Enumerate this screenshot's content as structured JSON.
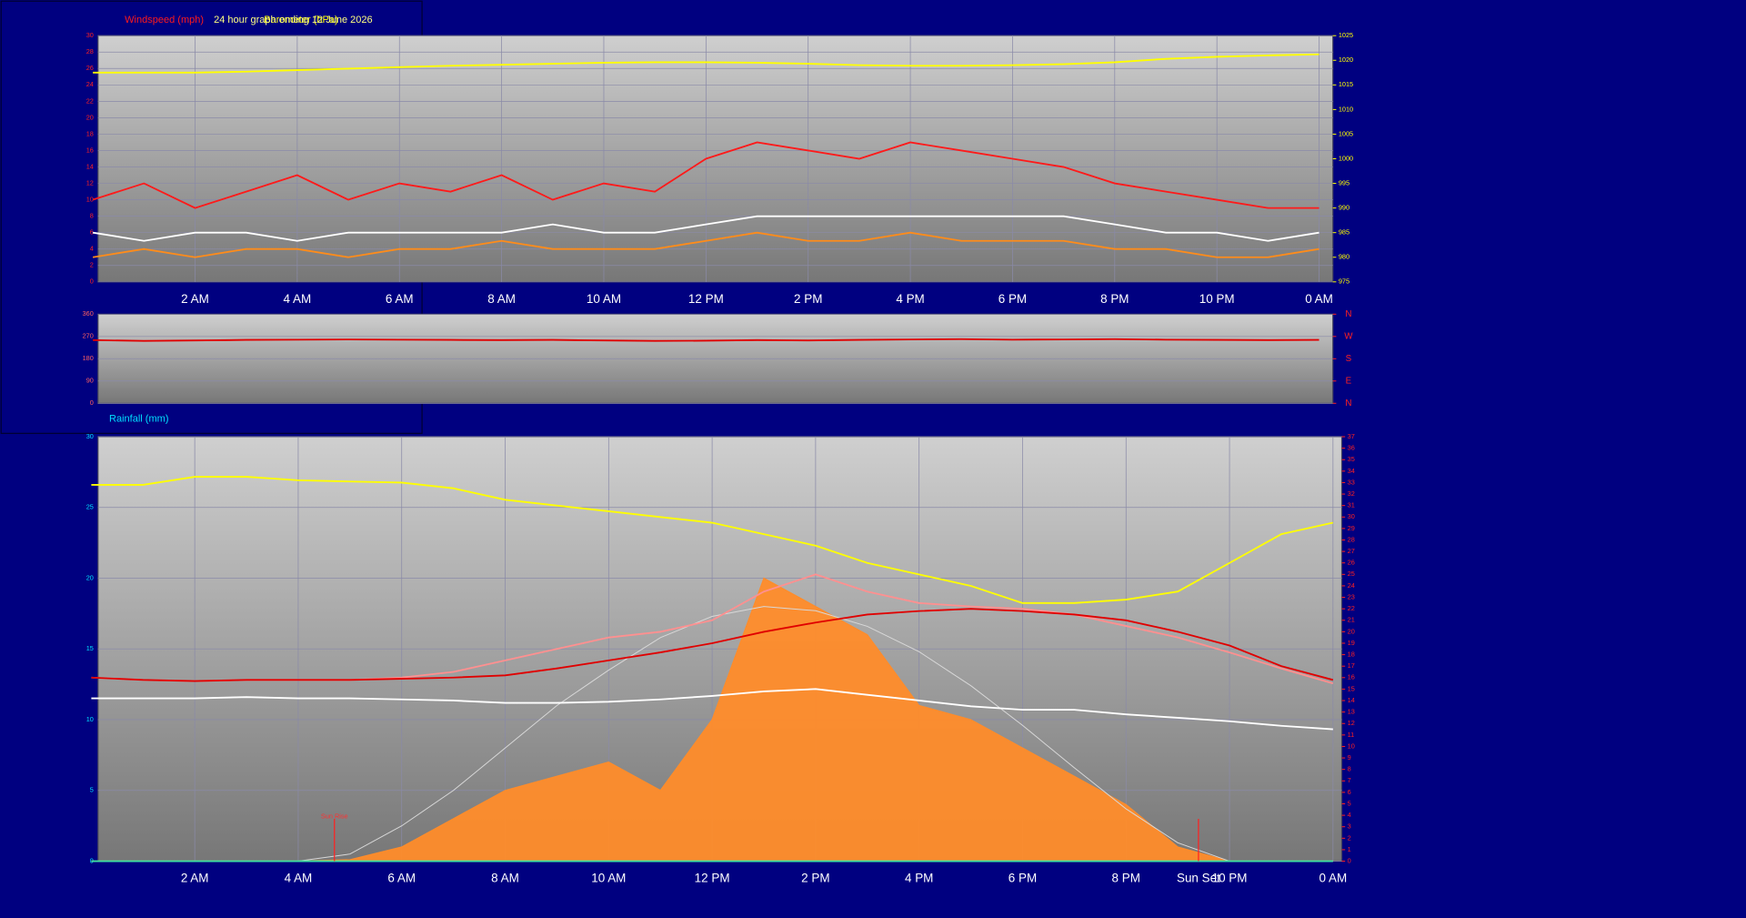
{
  "chart_data": [
    {
      "type": "line",
      "title": "24 hour graph ending 12 June 2026",
      "x": [
        0,
        1,
        2,
        3,
        4,
        5,
        6,
        7,
        8,
        9,
        10,
        11,
        12,
        13,
        14,
        15,
        16,
        17,
        18,
        19,
        20,
        21,
        22,
        23,
        24
      ],
      "xlim": [
        0.1,
        24.27
      ],
      "xticks": [
        {
          "value": 2,
          "label": "2 AM"
        },
        {
          "value": 4,
          "label": "4 AM"
        },
        {
          "value": 6,
          "label": "6 AM"
        },
        {
          "value": 8,
          "label": "8 AM"
        },
        {
          "value": 10,
          "label": "10 AM"
        },
        {
          "value": 12,
          "label": "12 PM"
        },
        {
          "value": 14,
          "label": "2 PM"
        },
        {
          "value": 16,
          "label": "4 PM"
        },
        {
          "value": 18,
          "label": "6 PM"
        },
        {
          "value": 20,
          "label": "8 PM"
        },
        {
          "value": 22,
          "label": "10 PM"
        },
        {
          "value": 24,
          "label": "0 AM"
        }
      ],
      "ylim": [
        0,
        30
      ],
      "yticks": [
        0,
        2,
        4,
        6,
        8,
        10,
        12,
        14,
        16,
        18,
        20,
        22,
        24,
        26,
        28,
        30
      ],
      "ytick_color": "#ff2020",
      "y2lim": [
        975,
        1025
      ],
      "y2ticks": [
        975,
        980,
        985,
        990,
        995,
        1000,
        1005,
        1010,
        1015,
        1020,
        1025
      ],
      "y2tick_color": "#ffff00",
      "grid": true,
      "series": [
        {
          "name": "Windspeed (mph)",
          "color": "#ff1a1a",
          "type": "line",
          "values": [
            10,
            12,
            9,
            11,
            13,
            10,
            12,
            11,
            13,
            10,
            12,
            11,
            15,
            17,
            16,
            15,
            17,
            16,
            15,
            14,
            12,
            11,
            10,
            9,
            9
          ]
        },
        {
          "color": "#ff8c1a",
          "type": "line",
          "values": [
            3,
            4,
            3,
            4,
            4,
            3,
            4,
            4,
            5,
            4,
            4,
            4,
            5,
            6,
            5,
            5,
            6,
            5,
            5,
            5,
            4,
            4,
            3,
            3,
            4
          ]
        },
        {
          "color": "#ffffff",
          "type": "line",
          "values": [
            6,
            5,
            6,
            6,
            5,
            6,
            6,
            6,
            6,
            7,
            6,
            6,
            7,
            8,
            8,
            8,
            8,
            8,
            8,
            8,
            7,
            6,
            6,
            5,
            6
          ]
        },
        {
          "name": "Barometer (hPa)",
          "color": "#ffff00",
          "type": "line",
          "axis": "y2",
          "values": [
            1017.5,
            1017.5,
            1017.5,
            1017.7,
            1018,
            1018.3,
            1018.6,
            1018.9,
            1019.1,
            1019.3,
            1019.5,
            1019.6,
            1019.6,
            1019.5,
            1019.3,
            1019,
            1018.9,
            1018.9,
            1019,
            1019.2,
            1019.6,
            1020.3,
            1020.7,
            1021,
            1021.2
          ]
        }
      ]
    },
    {
      "type": "line",
      "x": [
        0,
        1,
        2,
        3,
        4,
        5,
        6,
        7,
        8,
        9,
        10,
        11,
        12,
        13,
        14,
        15,
        16,
        17,
        18,
        19,
        20,
        21,
        22,
        23,
        24
      ],
      "xlim": [
        0.1,
        24.27
      ],
      "ylim": [
        0,
        360
      ],
      "yticks": [
        0,
        90,
        180,
        270,
        360
      ],
      "ytick_color": "#ff6060",
      "y2lim": [
        0,
        360
      ],
      "y2ticks": [
        {
          "value": 0,
          "label": "N"
        },
        {
          "value": 90,
          "label": "E"
        },
        {
          "value": 180,
          "label": "S"
        },
        {
          "value": 270,
          "label": "W"
        },
        {
          "value": 360,
          "label": "N"
        }
      ],
      "y2tick_color": "#ff2020",
      "grid": true,
      "series": [
        {
          "color": "#e00000",
          "type": "line",
          "values": [
            255,
            252,
            254,
            256,
            257,
            258,
            257,
            256,
            255,
            256,
            254,
            252,
            253,
            255,
            254,
            256,
            258,
            259,
            257,
            258,
            259,
            257,
            256,
            255,
            256
          ]
        }
      ]
    },
    {
      "type": "line",
      "x": [
        0,
        1,
        2,
        3,
        4,
        5,
        6,
        7,
        8,
        9,
        10,
        11,
        12,
        13,
        14,
        15,
        16,
        17,
        18,
        19,
        20,
        21,
        22,
        23,
        24
      ],
      "xlim": [
        0.13,
        24.17
      ],
      "xticks": [
        {
          "value": 2,
          "label": "2 AM"
        },
        {
          "value": 4,
          "label": "4 AM"
        },
        {
          "value": 6,
          "label": "6 AM"
        },
        {
          "value": 8,
          "label": "8 AM"
        },
        {
          "value": 10,
          "label": "10 AM"
        },
        {
          "value": 12,
          "label": "12 PM"
        },
        {
          "value": 14,
          "label": "2 PM"
        },
        {
          "value": 16,
          "label": "4 PM"
        },
        {
          "value": 18,
          "label": "6 PM"
        },
        {
          "value": 20,
          "label": "8 PM"
        },
        {
          "value": 22,
          "label": "10 PM"
        },
        {
          "value": 24,
          "label": "0 AM"
        }
      ],
      "ylim": [
        0,
        30
      ],
      "yticks": [
        0,
        5,
        10,
        15,
        20,
        25,
        30
      ],
      "ytick_color": "#00e0ff",
      "y2lim": [
        0,
        37
      ],
      "y2ticks": [
        0,
        1,
        2,
        3,
        4,
        5,
        6,
        7,
        8,
        9,
        10,
        11,
        12,
        13,
        14,
        15,
        16,
        17,
        18,
        19,
        20,
        21,
        22,
        23,
        24,
        25,
        26,
        27,
        28,
        29,
        30,
        31,
        32,
        33,
        34,
        35,
        36,
        37
      ],
      "y2tick_color": "#ff2020",
      "grid": true,
      "annotations": [
        {
          "text": "Sun Rise",
          "x": 4.7
        },
        {
          "text": "Sun Set",
          "x": 21.4
        }
      ],
      "series": [
        {
          "color": "#ff8c2a",
          "type": "area",
          "values": [
            0,
            0,
            0,
            0,
            0,
            0.1,
            1,
            3,
            5,
            6,
            7,
            5,
            10,
            20,
            18,
            16,
            11,
            10,
            8,
            6,
            4,
            1,
            0,
            0,
            0
          ]
        },
        {
          "color": "#d8d8d8",
          "type": "line",
          "values": [
            0,
            0,
            0,
            0,
            0,
            0.5,
            2.5,
            5,
            8,
            11,
            13.5,
            15.8,
            17.3,
            18,
            17.7,
            16.6,
            14.8,
            12.4,
            9.6,
            6.6,
            3.7,
            1.3,
            0,
            0,
            0
          ]
        },
        {
          "color": "#ffff00",
          "type": "line",
          "axis": "y2",
          "values": [
            32.8,
            32.8,
            33.5,
            33.5,
            33.2,
            33.1,
            33,
            32.5,
            31.5,
            31,
            30.5,
            30,
            29.5,
            28.5,
            27.5,
            26,
            25,
            24,
            22.5,
            22.5,
            22.8,
            23.5,
            26,
            28.5,
            29.5
          ]
        },
        {
          "color": "#ff9090",
          "type": "line",
          "axis": "y2",
          "values": [
            16,
            15.8,
            15.7,
            15.8,
            15.8,
            15.8,
            16,
            16.5,
            17.5,
            18.5,
            19.5,
            20,
            21,
            23.5,
            25,
            23.5,
            22.5,
            22.2,
            22,
            21.5,
            20.5,
            19.5,
            18.2,
            16.8,
            15.5
          ]
        },
        {
          "color": "#e00000",
          "type": "line",
          "axis": "y2",
          "values": [
            16,
            15.8,
            15.7,
            15.8,
            15.8,
            15.8,
            15.9,
            16,
            16.2,
            16.8,
            17.5,
            18.2,
            19,
            20,
            20.8,
            21.5,
            21.8,
            22,
            21.8,
            21.5,
            21,
            20,
            18.8,
            17,
            15.8
          ]
        },
        {
          "color": "#ffffff",
          "type": "line",
          "axis": "y2",
          "values": [
            14.2,
            14.2,
            14.2,
            14.3,
            14.2,
            14.2,
            14.1,
            14,
            13.8,
            13.8,
            13.9,
            14.1,
            14.4,
            14.8,
            15,
            14.5,
            14,
            13.5,
            13.2,
            13.2,
            12.8,
            12.5,
            12.2,
            11.8,
            11.5
          ]
        },
        {
          "name": "Rainfall (mm)",
          "color": "#40e0a0",
          "type": "line",
          "values": [
            0,
            0,
            0,
            0,
            0,
            0,
            0,
            0,
            0,
            0,
            0,
            0,
            0,
            0,
            0,
            0,
            0,
            0,
            0,
            0,
            0,
            0,
            0,
            0,
            0
          ]
        }
      ]
    }
  ]
}
